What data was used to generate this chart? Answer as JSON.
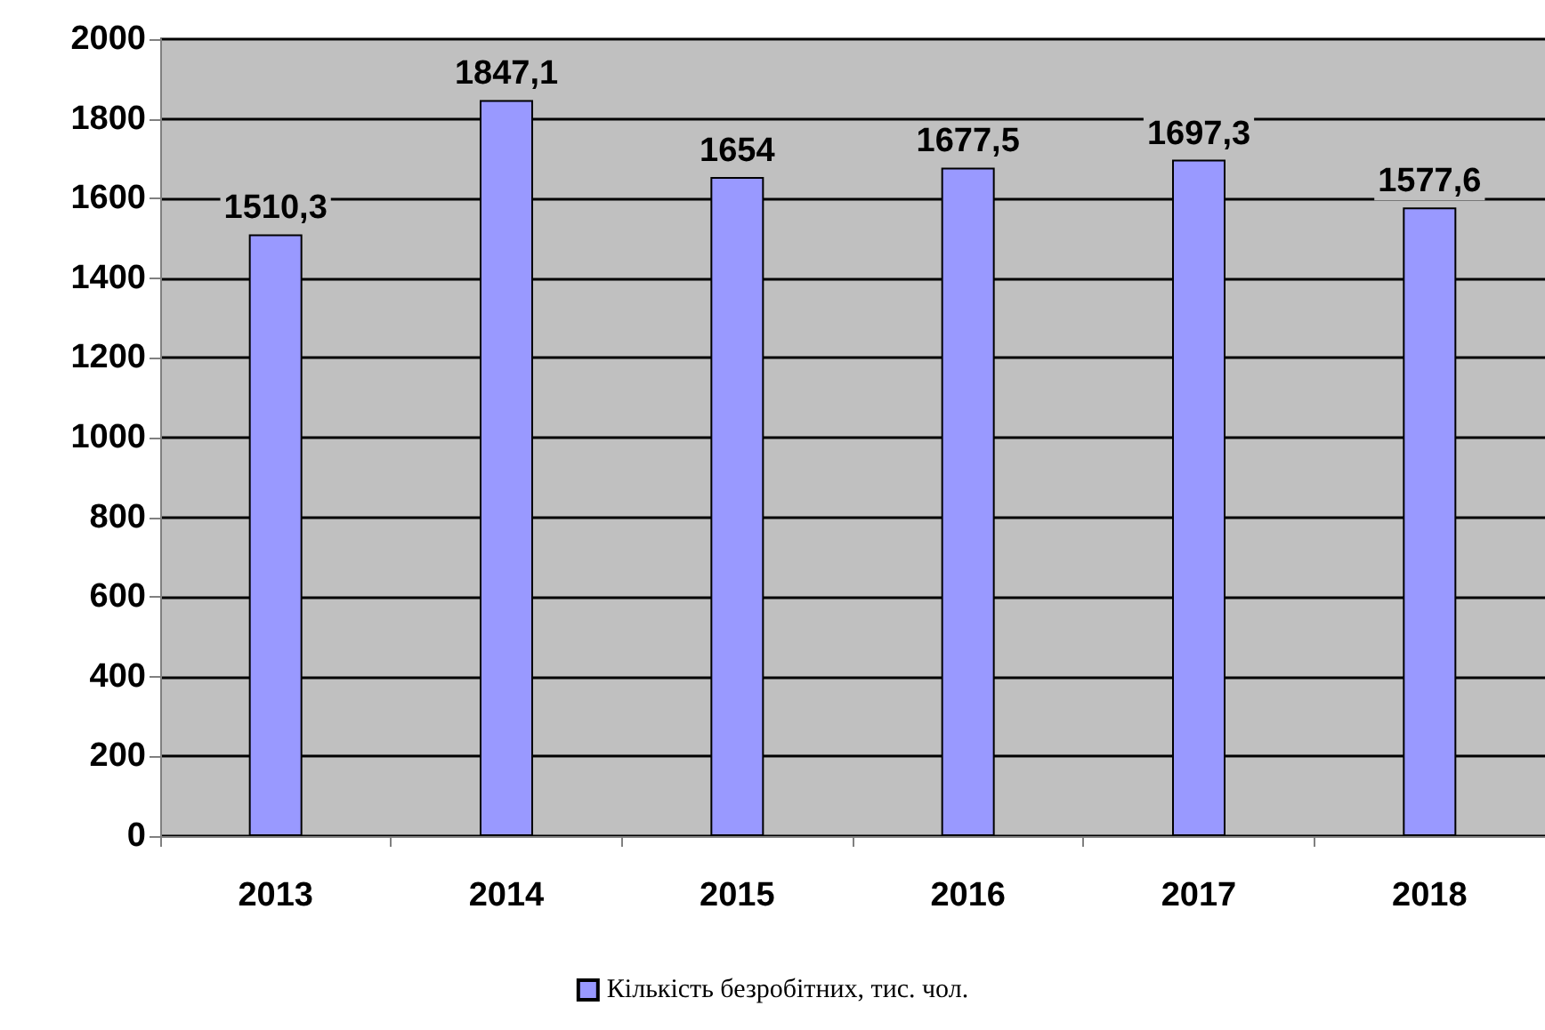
{
  "chart_data": {
    "type": "bar",
    "categories": [
      "2013",
      "2014",
      "2015",
      "2016",
      "2017",
      "2018"
    ],
    "series": [
      {
        "name": "Кількість безробітних, тис. чол.",
        "color": "#9999ff",
        "values": [
          1510.3,
          1847.1,
          1654,
          1677.5,
          1697.3,
          1577.6
        ],
        "value_labels": [
          "1510,3",
          "1847,1",
          "1654",
          "1677,5",
          "1697,3",
          "1577,6"
        ]
      }
    ],
    "ylim": [
      0,
      2000
    ],
    "yticks": [
      0,
      200,
      400,
      600,
      800,
      1000,
      1200,
      1400,
      1600,
      1800,
      2000
    ],
    "grid": "y",
    "legend": "bottom"
  }
}
